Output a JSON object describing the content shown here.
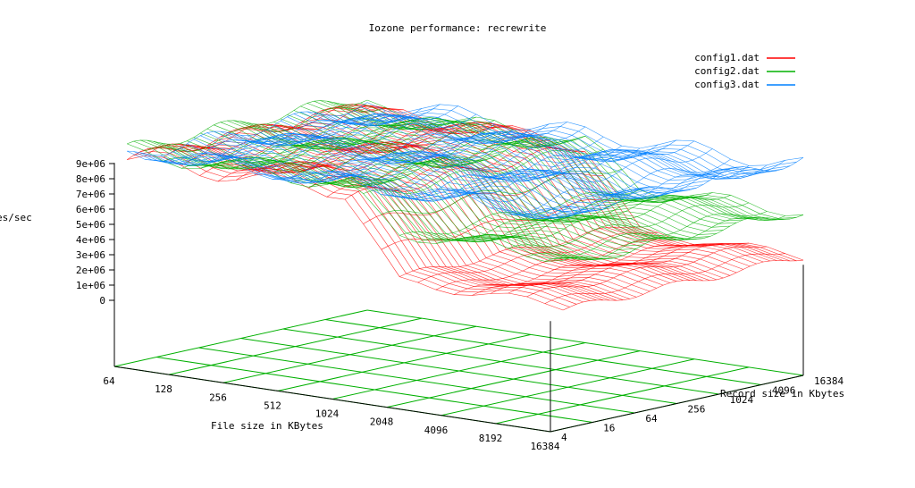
{
  "chart_data": {
    "type": "surface",
    "title": "Iozone performance: recrewrite",
    "xlabel": "File size in KBytes",
    "ylabel": "Record size in Kbytes",
    "zlabel_visible": "es/sec",
    "x_ticks": [
      "64",
      "128",
      "256",
      "512",
      "1024",
      "2048",
      "4096",
      "8192",
      "16384"
    ],
    "y_ticks": [
      "4",
      "16",
      "64",
      "256",
      "1024",
      "4096",
      "16384"
    ],
    "z_ticks": [
      "0",
      "1e+06",
      "2e+06",
      "3e+06",
      "4e+06",
      "5e+06",
      "6e+06",
      "7e+06",
      "8e+06",
      "9e+06"
    ],
    "zlim": [
      0,
      9000000
    ],
    "grid": true,
    "legend_position": "top-right",
    "series": [
      {
        "name": "config1.dat",
        "color": "#ff0000",
        "plateau": 8300000,
        "large_file": 5000000
      },
      {
        "name": "config2.dat",
        "color": "#00b000",
        "plateau": 8400000,
        "large_file": 6800000
      },
      {
        "name": "config3.dat",
        "color": "#0080ff",
        "plateau": 8500000,
        "large_file": 8500000
      }
    ]
  }
}
